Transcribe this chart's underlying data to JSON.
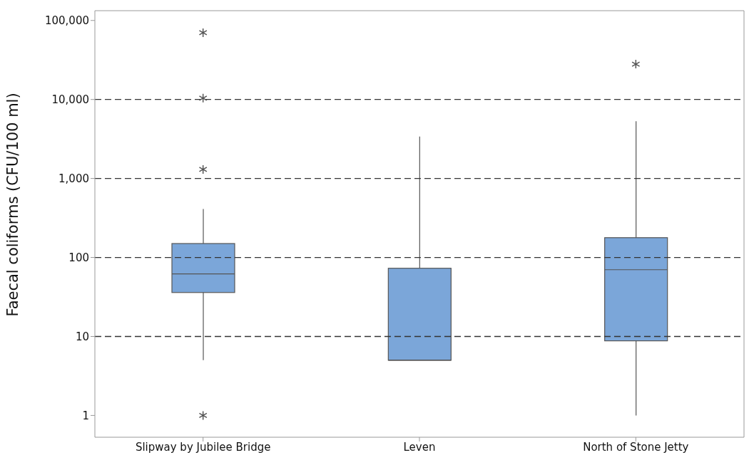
{
  "chart_data": {
    "type": "box",
    "ylabel": "Faecal coliforms (CFU/100 ml)",
    "categories": [
      "Slipway by Jubilee Bridge",
      "Leven",
      "North of Stone Jetty"
    ],
    "color": "#7ba6d9",
    "log": true,
    "ylim": [
      0.53,
      133000
    ],
    "yticks": [
      {
        "value": 1,
        "label": "1"
      },
      {
        "value": 10,
        "label": "10"
      },
      {
        "value": 100,
        "label": "100"
      },
      {
        "value": 1000,
        "label": "1,000"
      },
      {
        "value": 10000,
        "label": "10,000"
      },
      {
        "value": 100000,
        "label": "100,000"
      }
    ],
    "ref_lines": [
      {
        "axis": "y",
        "value": 10,
        "line_style": "dashed"
      },
      {
        "axis": "y",
        "value": 100,
        "line_style": "dashed"
      },
      {
        "axis": "y",
        "value": 1000,
        "line_style": "dashed"
      },
      {
        "axis": "y",
        "value": 10000,
        "line_style": "dashed"
      }
    ],
    "boxes": [
      {
        "low": 5,
        "q1": 36,
        "median": 62,
        "q3": 150,
        "high": 410,
        "outliers": [
          1,
          1300,
          10400,
          70000
        ]
      },
      {
        "low": 5,
        "q1": 5,
        "median": 5,
        "q3": 73,
        "high": 3400
      },
      {
        "low": 1,
        "q1": 8.8,
        "median": 70,
        "q3": 178,
        "high": 5300,
        "outliers": [
          28000
        ]
      }
    ]
  }
}
